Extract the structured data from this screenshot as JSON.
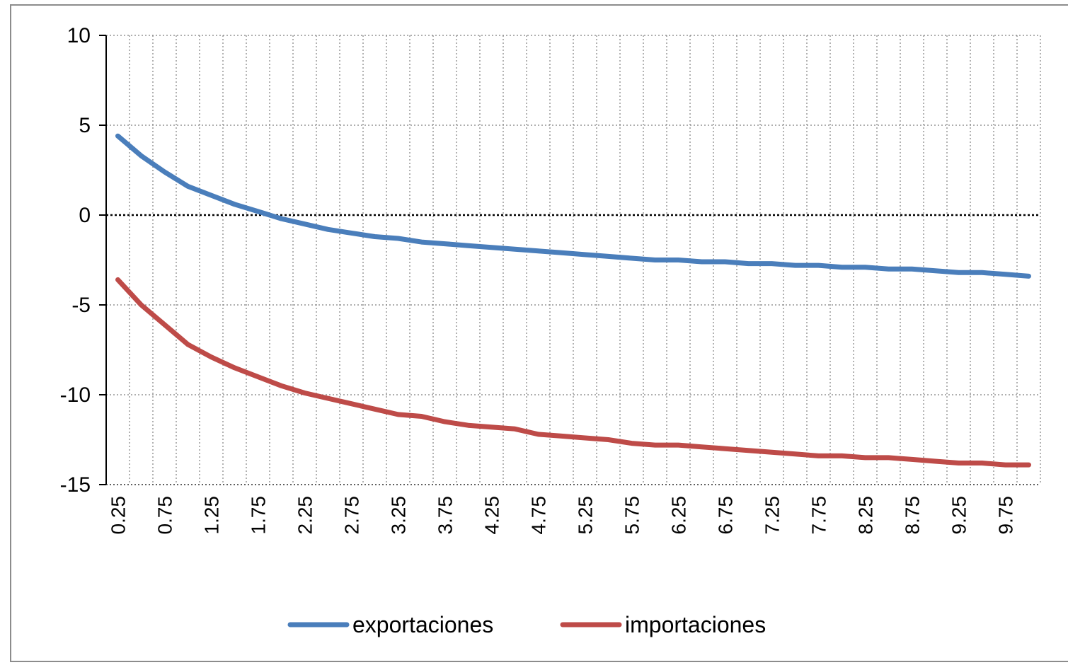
{
  "chart_data": {
    "type": "line",
    "title": "",
    "xlabel": "",
    "ylabel": "",
    "ylim": [
      -15,
      10
    ],
    "yticks": [
      10,
      5,
      0,
      -5,
      -10,
      -15
    ],
    "x": [
      0.25,
      0.5,
      0.75,
      1,
      1.25,
      1.5,
      1.75,
      2,
      2.25,
      2.5,
      2.75,
      3,
      3.25,
      3.5,
      3.75,
      4,
      4.25,
      4.5,
      4.75,
      5,
      5.25,
      5.5,
      5.75,
      6,
      6.25,
      6.5,
      6.75,
      7,
      7.25,
      7.5,
      7.75,
      8,
      8.25,
      8.5,
      8.75,
      9,
      9.25,
      9.5,
      9.75,
      10
    ],
    "xtick_labels": [
      "0.25",
      "0.75",
      "1.25",
      "1.75",
      "2.25",
      "2.75",
      "3.25",
      "3.75",
      "4.25",
      "4.75",
      "5.25",
      "5.75",
      "6.25",
      "6.75",
      "7.25",
      "7.75",
      "8.25",
      "8.75",
      "9.25",
      "9.75"
    ],
    "grid": true,
    "legend": "bottom",
    "series": [
      {
        "name": "exportaciones",
        "color": "#4a7ebb",
        "values": [
          4.4,
          3.3,
          2.4,
          1.6,
          1.1,
          0.6,
          0.2,
          -0.2,
          -0.5,
          -0.8,
          -1.0,
          -1.2,
          -1.3,
          -1.5,
          -1.6,
          -1.7,
          -1.8,
          -1.9,
          -2.0,
          -2.1,
          -2.2,
          -2.3,
          -2.4,
          -2.5,
          -2.5,
          -2.6,
          -2.6,
          -2.7,
          -2.7,
          -2.8,
          -2.8,
          -2.9,
          -2.9,
          -3.0,
          -3.0,
          -3.1,
          -3.2,
          -3.2,
          -3.3,
          -3.4
        ]
      },
      {
        "name": "importaciones",
        "color": "#be4b48",
        "values": [
          -3.6,
          -5.0,
          -6.1,
          -7.2,
          -7.9,
          -8.5,
          -9.0,
          -9.5,
          -9.9,
          -10.2,
          -10.5,
          -10.8,
          -11.1,
          -11.2,
          -11.5,
          -11.7,
          -11.8,
          -11.9,
          -12.2,
          -12.3,
          -12.4,
          -12.5,
          -12.7,
          -12.8,
          -12.8,
          -12.9,
          -13.0,
          -13.1,
          -13.2,
          -13.3,
          -13.4,
          -13.4,
          -13.5,
          -13.5,
          -13.6,
          -13.7,
          -13.8,
          -13.8,
          -13.9,
          -13.9
        ]
      }
    ]
  }
}
